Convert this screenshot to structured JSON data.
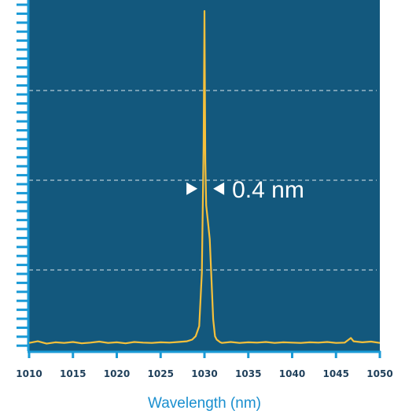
{
  "chart_data": {
    "type": "line",
    "title": "",
    "xlabel": "Wavelength (nm)",
    "ylabel": "",
    "xlim": [
      1010,
      1050
    ],
    "ylim": [
      0,
      1
    ],
    "x_ticks": [
      "1010",
      "1015",
      "1020",
      "1025",
      "1030",
      "1035",
      "1040",
      "1045",
      "1050"
    ],
    "y_ticks_labeled": false,
    "grid": "horizontal-dashed",
    "annotation": {
      "text": "0.4 nm",
      "x": 1030.1,
      "y": 0.47
    },
    "series": [
      {
        "color": "#f6c03b",
        "x": [
          1010,
          1011,
          1012,
          1013,
          1014,
          1015,
          1016,
          1017,
          1018,
          1019,
          1020,
          1021,
          1022,
          1023,
          1024,
          1025,
          1026,
          1027,
          1028,
          1028.6,
          1029.0,
          1029.4,
          1029.7,
          1029.9,
          1030.0,
          1030.1,
          1030.2,
          1030.4,
          1030.6,
          1030.8,
          1031.0,
          1031.2,
          1031.4,
          1031.8,
          1032,
          1033,
          1034,
          1035,
          1036,
          1037,
          1038,
          1039,
          1040,
          1041,
          1042,
          1043,
          1044,
          1045,
          1046,
          1046.7,
          1047,
          1048,
          1049,
          1050
        ],
        "y": [
          0.01,
          0.015,
          0.008,
          0.012,
          0.01,
          0.013,
          0.009,
          0.011,
          0.014,
          0.01,
          0.012,
          0.009,
          0.013,
          0.011,
          0.01,
          0.012,
          0.011,
          0.013,
          0.015,
          0.02,
          0.03,
          0.06,
          0.22,
          0.6,
          1.0,
          0.55,
          0.42,
          0.37,
          0.32,
          0.2,
          0.08,
          0.03,
          0.02,
          0.012,
          0.01,
          0.013,
          0.01,
          0.012,
          0.011,
          0.013,
          0.01,
          0.012,
          0.011,
          0.01,
          0.012,
          0.011,
          0.013,
          0.01,
          0.011,
          0.025,
          0.015,
          0.012,
          0.014,
          0.01
        ]
      }
    ]
  },
  "colors": {
    "plot_background": "#13587d",
    "axis_color": "#1a9ad6",
    "grid_color": "#ffffff",
    "line_color": "#f6c03b"
  }
}
